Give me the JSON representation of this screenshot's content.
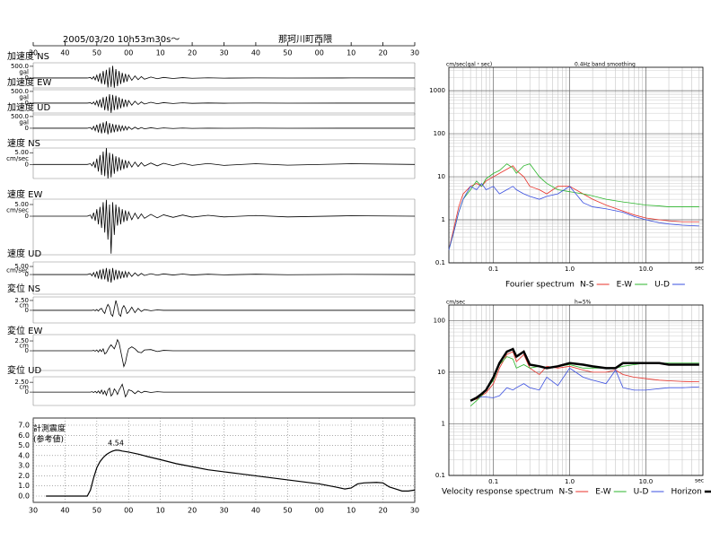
{
  "chart_data": [
    {
      "type": "waveform",
      "title": "2005/03/20 10h53m30s～",
      "subtitle": "那珂川町西隈",
      "xlim": [
        0,
        120
      ],
      "xticks": [
        {
          "value": 0,
          "label": "30"
        },
        {
          "value": 10,
          "label": "40"
        },
        {
          "value": 20,
          "label": "50"
        },
        {
          "value": 30,
          "label": "00"
        },
        {
          "value": 40,
          "label": "10"
        },
        {
          "value": 50,
          "label": "20"
        },
        {
          "value": 60,
          "label": "30"
        },
        {
          "value": 70,
          "label": "40"
        },
        {
          "value": 80,
          "label": "50"
        },
        {
          "value": 90,
          "label": "00"
        },
        {
          "value": 100,
          "label": "10"
        },
        {
          "value": 110,
          "label": "20"
        },
        {
          "value": 120,
          "label": "30"
        }
      ],
      "x": [
        0,
        17,
        18,
        18.5,
        19,
        19.5,
        20,
        20.5,
        21,
        21.5,
        22,
        22.5,
        23,
        23.5,
        24,
        24.5,
        25,
        25.5,
        26,
        26.5,
        27,
        27.5,
        28,
        28.5,
        29,
        29.5,
        30,
        31,
        32,
        33,
        34,
        35,
        37,
        39,
        41,
        44,
        47,
        50,
        55,
        60,
        70,
        80,
        100,
        120
      ],
      "color": "#000000",
      "panels": [
        {
          "name": "加速度 NS",
          "unit": "gal",
          "ylim": [
            -500,
            650
          ],
          "yticks": [
            {
              "value": 500,
              "label": "500.0"
            },
            0
          ],
          "values": [
            0,
            0,
            20,
            -40,
            60,
            -80,
            120,
            -150,
            200,
            -250,
            300,
            -280,
            350,
            -400,
            450,
            -380,
            520,
            -420,
            380,
            -350,
            300,
            -260,
            220,
            -200,
            180,
            -150,
            130,
            -100,
            90,
            -70,
            60,
            -50,
            40,
            -30,
            25,
            -20,
            15,
            -10,
            8,
            -5,
            4,
            -3,
            2,
            0
          ]
        },
        {
          "name": "加速度 EW",
          "unit": "gal",
          "ylim": [
            -500,
            650
          ],
          "yticks": [
            {
              "value": 500,
              "label": "500.0"
            },
            0
          ],
          "values": [
            0,
            0,
            15,
            -30,
            50,
            -70,
            100,
            -130,
            160,
            -200,
            250,
            -300,
            280,
            -330,
            380,
            -420,
            350,
            -300,
            320,
            -280,
            250,
            -220,
            190,
            -170,
            150,
            -130,
            110,
            -90,
            80,
            -60,
            50,
            -40,
            35,
            -25,
            20,
            -15,
            12,
            -8,
            6,
            -4,
            3,
            -2,
            1,
            0
          ]
        },
        {
          "name": "加速度 UD",
          "unit": "gal",
          "ylim": [
            -500,
            650
          ],
          "yticks": [
            {
              "value": 500,
              "label": "500.0"
            },
            0
          ],
          "values": [
            0,
            0,
            30,
            -50,
            80,
            -100,
            150,
            -180,
            200,
            -220,
            250,
            -200,
            300,
            -260,
            220,
            -200,
            180,
            -170,
            160,
            -140,
            120,
            -110,
            100,
            -90,
            80,
            -70,
            60,
            -50,
            45,
            -35,
            30,
            -25,
            20,
            -15,
            12,
            -10,
            8,
            -6,
            4,
            -3,
            2,
            -1,
            1,
            0
          ]
        },
        {
          "name": "速度 NS",
          "unit": "cm/sec",
          "ylim": [
            -6,
            7
          ],
          "yticks": [
            {
              "value": 5,
              "label": "5.00"
            },
            0
          ],
          "values": [
            0,
            0,
            0.3,
            -0.6,
            1,
            -1.5,
            2.5,
            -3,
            4,
            -4.5,
            5.5,
            -5,
            7,
            -6,
            5,
            -5.5,
            4.5,
            -4,
            3.5,
            -3,
            3,
            -2.5,
            2.2,
            -2,
            1.8,
            -1.5,
            1.3,
            -1.1,
            1,
            -0.9,
            0.8,
            -0.7,
            0.6,
            -0.6,
            0.5,
            -0.5,
            0.5,
            -0.4,
            0.4,
            -0.4,
            0.3,
            -0.3,
            0.3,
            0
          ]
        },
        {
          "name": "速度 EW",
          "unit": "cm/sec",
          "ylim": [
            -16.5,
            7.3
          ],
          "yticks": [
            {
              "value": 5,
              "label": "5.00"
            },
            0
          ],
          "values": [
            0,
            0,
            0.5,
            -1,
            1.5,
            -2,
            3,
            -3.5,
            4,
            -5,
            6,
            -7,
            7,
            -10,
            5,
            -16,
            6,
            -8,
            5,
            -4,
            4,
            -3.5,
            3,
            -2.5,
            2.5,
            -2,
            1.8,
            -1.5,
            1.3,
            -1.1,
            1,
            -0.9,
            0.8,
            -0.7,
            0.6,
            -0.5,
            0.5,
            -0.4,
            0.4,
            -0.3,
            0.3,
            -0.3,
            0.2,
            0
          ]
        },
        {
          "name": "速度 UD",
          "unit": "cm/sec",
          "ylim": [
            -12.2,
            7.8
          ],
          "yticks": [
            {
              "value": 5,
              "label": "5.00"
            },
            0
          ],
          "values": [
            0,
            0,
            0.5,
            -0.8,
            1.2,
            -1.5,
            2,
            -2.5,
            3,
            -3,
            3.5,
            -3,
            4,
            -4.5,
            3.5,
            -5,
            4,
            -3.5,
            3,
            -3,
            2.5,
            -2.5,
            2,
            -2,
            1.8,
            -1.5,
            1.5,
            -1.2,
            1,
            -0.8,
            0.7,
            -0.6,
            0.5,
            -0.4,
            0.4,
            -0.3,
            0.3,
            -0.3,
            0.2,
            -0.2,
            0.2,
            -0.1,
            0.1,
            0
          ]
        },
        {
          "name": "変位 NS",
          "unit": "cm",
          "ylim": [
            -3.2,
            3.4
          ],
          "yticks": [
            {
              "value": 2.5,
              "label": "2.50"
            },
            0
          ],
          "values": [
            0,
            0,
            0,
            0,
            0.1,
            -0.1,
            0.2,
            -0.2,
            0.3,
            0.5,
            -0.3,
            -0.8,
            0.6,
            1.5,
            0.8,
            -1,
            -1.5,
            0.5,
            2.5,
            1,
            -1,
            -1.5,
            0.5,
            1.2,
            0.5,
            -0.8,
            -0.5,
            0.8,
            -0.6,
            0.5,
            -0.3,
            0.2,
            -0.1,
            0.1,
            0,
            0,
            0,
            0,
            0,
            0,
            0,
            0,
            0,
            0
          ]
        },
        {
          "name": "変位 EW",
          "unit": "cm",
          "ylim": [
            -5,
            4.1
          ],
          "yticks": [
            {
              "value": 2.5,
              "label": "2.50"
            },
            0
          ],
          "values": [
            0,
            0,
            0,
            0,
            0.1,
            -0.1,
            0.2,
            -0.3,
            0.3,
            -0.2,
            0.5,
            -0.8,
            -0.5,
            0.3,
            1,
            1.5,
            1,
            0.5,
            1.5,
            2.8,
            2,
            0,
            -2,
            -4,
            -3,
            -1,
            0.5,
            1,
            0.5,
            -0.3,
            -0.5,
            0.2,
            0.3,
            -0.2,
            0.1,
            0,
            0,
            0,
            0,
            0,
            0,
            0,
            0,
            0
          ]
        },
        {
          "name": "変位 UD",
          "unit": "cm",
          "ylim": [
            -3.4,
            3.9
          ],
          "yticks": [
            {
              "value": 2.5,
              "label": "2.50"
            },
            0
          ],
          "values": [
            0,
            0,
            0,
            0.1,
            -0.1,
            0.2,
            -0.2,
            0.3,
            -0.3,
            0.5,
            -0.5,
            0.3,
            -0.8,
            0.5,
            1,
            -1,
            -0.5,
            0.8,
            0.3,
            -0.6,
            0.5,
            1.2,
            2,
            0.5,
            -1.2,
            -0.5,
            0.6,
            0.3,
            -0.4,
            0.3,
            -0.2,
            0.2,
            -0.1,
            0.1,
            0,
            0,
            0,
            0,
            0,
            0,
            0,
            0,
            0,
            0
          ]
        }
      ]
    },
    {
      "type": "line",
      "title": "計測震度",
      "subtitle": "(参考値)",
      "xlim": [
        0,
        120
      ],
      "xticks": [
        {
          "value": 0,
          "label": "30"
        },
        {
          "value": 10,
          "label": "40"
        },
        {
          "value": 20,
          "label": "50"
        },
        {
          "value": 30,
          "label": "00"
        },
        {
          "value": 40,
          "label": "10"
        },
        {
          "value": 50,
          "label": "20"
        },
        {
          "value": 60,
          "label": "30"
        },
        {
          "value": 70,
          "label": "40"
        },
        {
          "value": 80,
          "label": "50"
        },
        {
          "value": 90,
          "label": "00"
        },
        {
          "value": 100,
          "label": "10"
        },
        {
          "value": 110,
          "label": "20"
        },
        {
          "value": 120,
          "label": "30"
        }
      ],
      "ylim": [
        0,
        7
      ],
      "yticks": [
        {
          "value": 0,
          "label": "0.0"
        },
        {
          "value": 1,
          "label": "1.0"
        },
        {
          "value": 2,
          "label": "2.0"
        },
        {
          "value": 3,
          "label": "3.0"
        },
        {
          "value": 4,
          "label": "4.0"
        },
        {
          "value": 5,
          "label": "5.0"
        },
        {
          "value": 6,
          "label": "6.0"
        },
        {
          "value": 7,
          "label": "7.0"
        }
      ],
      "grid": true,
      "x": [
        4,
        16,
        17,
        18,
        19,
        20,
        21,
        22,
        23,
        24,
        25,
        26,
        27,
        28,
        30,
        33,
        36,
        40,
        45,
        50,
        55,
        60,
        65,
        70,
        75,
        80,
        85,
        90,
        95,
        98,
        100,
        102,
        104,
        108,
        110,
        112,
        114,
        116,
        118,
        120
      ],
      "series": [
        {
          "color": "#000000",
          "values": [
            0,
            0,
            0,
            0.6,
            1.8,
            2.8,
            3.4,
            3.8,
            4.1,
            4.3,
            4.45,
            4.54,
            4.52,
            4.45,
            4.35,
            4.15,
            3.9,
            3.6,
            3.2,
            2.9,
            2.6,
            2.4,
            2.2,
            2.0,
            1.8,
            1.6,
            1.4,
            1.2,
            0.9,
            0.7,
            0.8,
            1.2,
            1.3,
            1.35,
            1.3,
            0.9,
            0.7,
            0.5,
            0.5,
            0.6
          ]
        }
      ],
      "labeled_point": 11
    },
    {
      "type": "line",
      "title": "Fourier spectrum",
      "y_label": "cm/sec(gal・sec)",
      "note": "0.4Hz band smoothing",
      "x_label": "sec",
      "log_x": true,
      "log_y": true,
      "grid": true,
      "minor_grid": true,
      "xlim": [
        0.026,
        56
      ],
      "ylim": [
        0.1,
        3500
      ],
      "xticks": [
        0.1,
        {
          "value": 1,
          "label": "1.0"
        },
        {
          "value": 10,
          "label": "10.0"
        }
      ],
      "yticks": [
        0.1,
        1,
        10,
        100,
        1000
      ],
      "x": [
        0.026,
        0.03,
        0.035,
        0.04,
        0.05,
        0.06,
        0.07,
        0.08,
        0.1,
        0.12,
        0.15,
        0.18,
        0.2,
        0.25,
        0.3,
        0.4,
        0.5,
        0.7,
        1,
        1.5,
        2,
        3,
        5,
        7,
        10,
        15,
        20,
        30,
        50
      ],
      "series": [
        {
          "name": "N-S",
          "color": "#e8322a",
          "values": [
            0.2,
            0.6,
            2,
            4,
            6,
            7,
            6,
            8,
            10,
            12,
            15,
            18,
            14,
            10,
            6,
            5,
            4,
            6,
            6,
            4,
            3,
            2.2,
            1.6,
            1.3,
            1.1,
            1,
            0.95,
            0.9,
            0.9
          ]
        },
        {
          "name": "E-W",
          "color": "#2bb52b",
          "values": [
            0.2,
            0.5,
            1.5,
            3,
            5,
            8,
            6,
            9,
            12,
            14,
            20,
            16,
            12,
            18,
            20,
            10,
            7,
            5,
            4.5,
            4,
            3.6,
            3,
            2.6,
            2.4,
            2.2,
            2.1,
            2,
            2,
            2
          ]
        },
        {
          "name": "U-D",
          "color": "#3a4fe0",
          "values": [
            0.2,
            0.5,
            1.5,
            3,
            6,
            5,
            7,
            5,
            6,
            4,
            5,
            6,
            5,
            4,
            3.5,
            3,
            3.5,
            4,
            6,
            2.5,
            2,
            1.8,
            1.5,
            1.2,
            1,
            0.85,
            0.8,
            0.75,
            0.72
          ]
        }
      ]
    },
    {
      "type": "line",
      "title": "Velocity response spectrum",
      "y_label": "cm/sec",
      "note": "h=5%",
      "x_label": "sec",
      "log_x": true,
      "log_y": true,
      "grid": true,
      "minor_grid": true,
      "xlim": [
        0.026,
        56
      ],
      "ylim": [
        0.1,
        200
      ],
      "xticks": [
        0.1,
        {
          "value": 1,
          "label": "1.0"
        },
        {
          "value": 10,
          "label": "10.0"
        }
      ],
      "yticks": [
        0.1,
        1,
        10,
        100
      ],
      "x": [
        0.05,
        0.06,
        0.07,
        0.08,
        0.1,
        0.12,
        0.15,
        0.18,
        0.2,
        0.25,
        0.3,
        0.4,
        0.5,
        0.7,
        1,
        1.5,
        2,
        3,
        4,
        5,
        7,
        10,
        15,
        20,
        30,
        50
      ],
      "series": [
        {
          "name": "N-S",
          "color": "#e8322a",
          "values": [
            2.8,
            3,
            3.5,
            4,
            6,
            12,
            22,
            25,
            16,
            22,
            12,
            9,
            13,
            12,
            13,
            11,
            10,
            10,
            11,
            9,
            8,
            7.5,
            7,
            6.8,
            6.6,
            6.5
          ]
        },
        {
          "name": "E-W",
          "color": "#2bb52b",
          "values": [
            2.2,
            2.8,
            3.5,
            4.5,
            7,
            14,
            20,
            18,
            12,
            14,
            12,
            13,
            12,
            13,
            14,
            12,
            12,
            12,
            12,
            13,
            14,
            15,
            15,
            15,
            15,
            15
          ]
        },
        {
          "name": "U-D",
          "color": "#3a4fe0",
          "values": [
            2.8,
            3.2,
            3.3,
            3.3,
            3.2,
            3.5,
            5,
            4.5,
            5,
            6,
            5,
            4.5,
            8,
            5.5,
            12,
            8,
            7,
            6,
            11,
            5,
            4.5,
            4.5,
            4.8,
            5,
            5,
            5.2
          ]
        },
        {
          "name": "Horizon",
          "color": "#000000",
          "width": 2.5,
          "values": [
            2.8,
            3.2,
            3.8,
            4.5,
            8,
            15,
            25,
            28,
            20,
            25,
            14,
            13,
            12,
            13,
            15,
            14,
            13,
            12,
            12,
            15,
            15,
            15,
            15,
            14,
            14,
            14
          ]
        }
      ]
    }
  ]
}
